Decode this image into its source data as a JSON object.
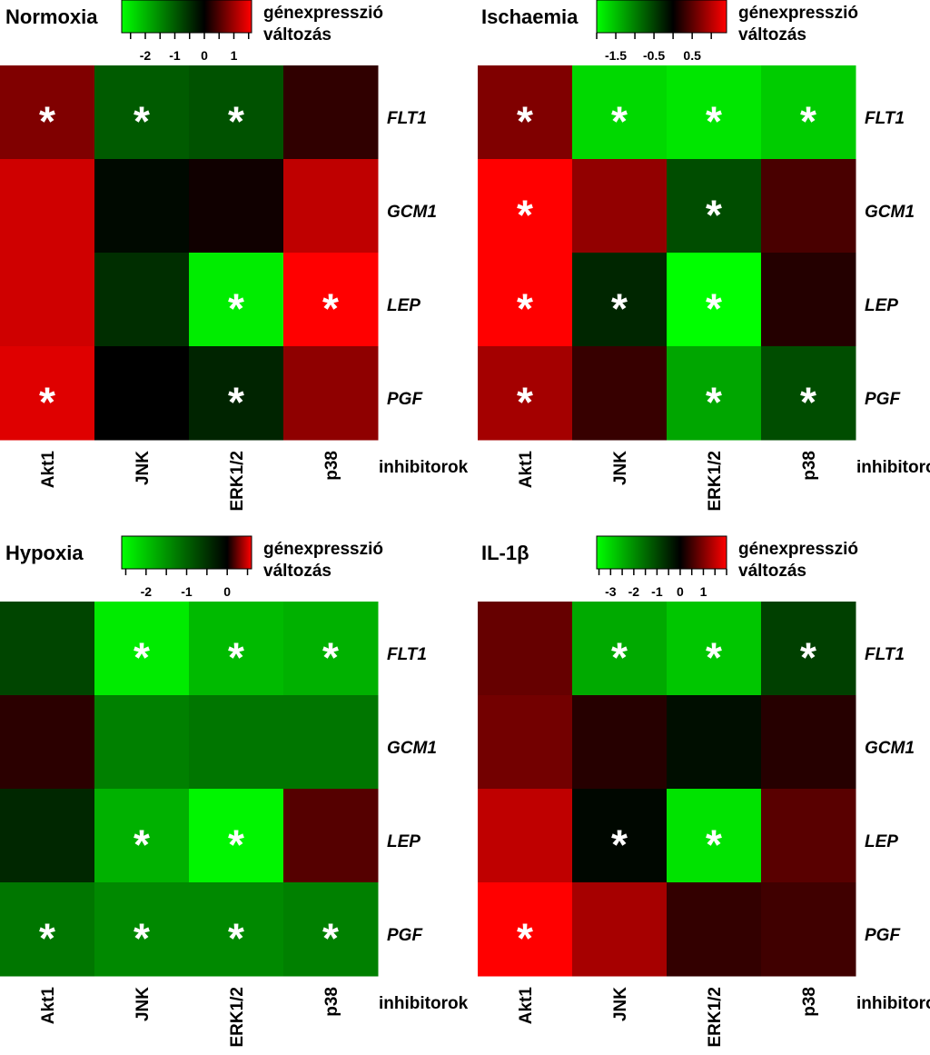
{
  "chart_data": [
    {
      "type": "heatmap",
      "title": "Normoxia",
      "legend_title": [
        "génexpresszió",
        "változás"
      ],
      "legend_ticks": [
        "-2",
        "-1",
        "0",
        "1"
      ],
      "legend_range": [
        -2.8,
        1.6
      ],
      "legend_tick_values": [
        -2,
        -1,
        0,
        1
      ],
      "x_label": "inhibitorok",
      "columns": [
        "Akt1",
        "JNK",
        "ERK1/2",
        "p38"
      ],
      "rows": [
        "FLT1",
        "GCM1",
        "LEP",
        "PGF"
      ],
      "values": [
        [
          0.8,
          -1.0,
          -0.9,
          0.3
        ],
        [
          1.3,
          -0.1,
          0.1,
          1.2
        ],
        [
          1.3,
          -0.5,
          -2.6,
          1.6
        ],
        [
          1.4,
          0.0,
          -0.4,
          0.9
        ]
      ],
      "significant": [
        [
          true,
          true,
          true,
          false
        ],
        [
          false,
          false,
          false,
          false
        ],
        [
          false,
          false,
          true,
          true
        ],
        [
          true,
          false,
          true,
          false
        ]
      ]
    },
    {
      "type": "heatmap",
      "title": "Ischaemia",
      "legend_title": [
        "génexpresszió",
        "változás"
      ],
      "legend_ticks": [
        "-1.5",
        "-0.5",
        "0.5"
      ],
      "legend_range": [
        -2.0,
        1.4
      ],
      "legend_tick_values": [
        -1.5,
        -0.5,
        0.5
      ],
      "x_label": "inhibitorok",
      "columns": [
        "Akt1",
        "JNK",
        "ERK1/2",
        "p38"
      ],
      "rows": [
        "FLT1",
        "GCM1",
        "LEP",
        "PGF"
      ],
      "values": [
        [
          0.7,
          -1.7,
          -1.8,
          -1.6
        ],
        [
          1.4,
          0.8,
          -0.6,
          0.4
        ],
        [
          1.4,
          -0.3,
          -2.0,
          0.2
        ],
        [
          0.9,
          0.3,
          -1.3,
          -0.6
        ]
      ],
      "significant": [
        [
          true,
          true,
          true,
          true
        ],
        [
          true,
          false,
          true,
          false
        ],
        [
          true,
          true,
          true,
          false
        ],
        [
          true,
          false,
          true,
          true
        ]
      ]
    },
    {
      "type": "heatmap",
      "title": "Hypoxia",
      "legend_title": [
        "génexpresszió",
        "változás"
      ],
      "legend_ticks": [
        "-2",
        "-1",
        "0"
      ],
      "legend_range": [
        -2.6,
        0.6
      ],
      "legend_tick_values": [
        -2,
        -1,
        0
      ],
      "x_label": "inhibitorok",
      "columns": [
        "Akt1",
        "JNK",
        "ERK1/2",
        "p38"
      ],
      "rows": [
        "FLT1",
        "GCM1",
        "LEP",
        "PGF"
      ],
      "values": [
        [
          -0.7,
          -2.4,
          -1.9,
          -1.8
        ],
        [
          0.1,
          -1.3,
          -1.2,
          -1.2
        ],
        [
          -0.4,
          -1.8,
          -2.5,
          0.2
        ],
        [
          -1.2,
          -1.4,
          -1.4,
          -1.3
        ]
      ],
      "significant": [
        [
          false,
          true,
          true,
          true
        ],
        [
          false,
          false,
          false,
          false
        ],
        [
          false,
          true,
          true,
          false
        ],
        [
          true,
          true,
          true,
          true
        ]
      ]
    },
    {
      "type": "heatmap",
      "title": "IL-1β",
      "legend_title": [
        "génexpresszió",
        "változás"
      ],
      "legend_ticks": [
        "-3",
        "-2",
        "-1",
        "0",
        "1"
      ],
      "legend_range": [
        -3.6,
        2.0
      ],
      "legend_tick_values": [
        -3,
        -2,
        -1,
        0,
        1
      ],
      "x_label": "inhibitorok",
      "columns": [
        "Akt1",
        "JNK",
        "ERK1/2",
        "p38"
      ],
      "rows": [
        "FLT1",
        "GCM1",
        "LEP",
        "PGF"
      ],
      "values": [
        [
          0.8,
          -2.4,
          -2.8,
          -0.9
        ],
        [
          0.9,
          0.3,
          -0.2,
          0.3
        ],
        [
          1.5,
          -0.1,
          -3.2,
          0.7
        ],
        [
          2.0,
          1.3,
          0.4,
          0.5
        ]
      ],
      "significant": [
        [
          false,
          true,
          true,
          true
        ],
        [
          false,
          false,
          false,
          false
        ],
        [
          false,
          true,
          true,
          false
        ],
        [
          true,
          false,
          false,
          false
        ]
      ]
    }
  ]
}
